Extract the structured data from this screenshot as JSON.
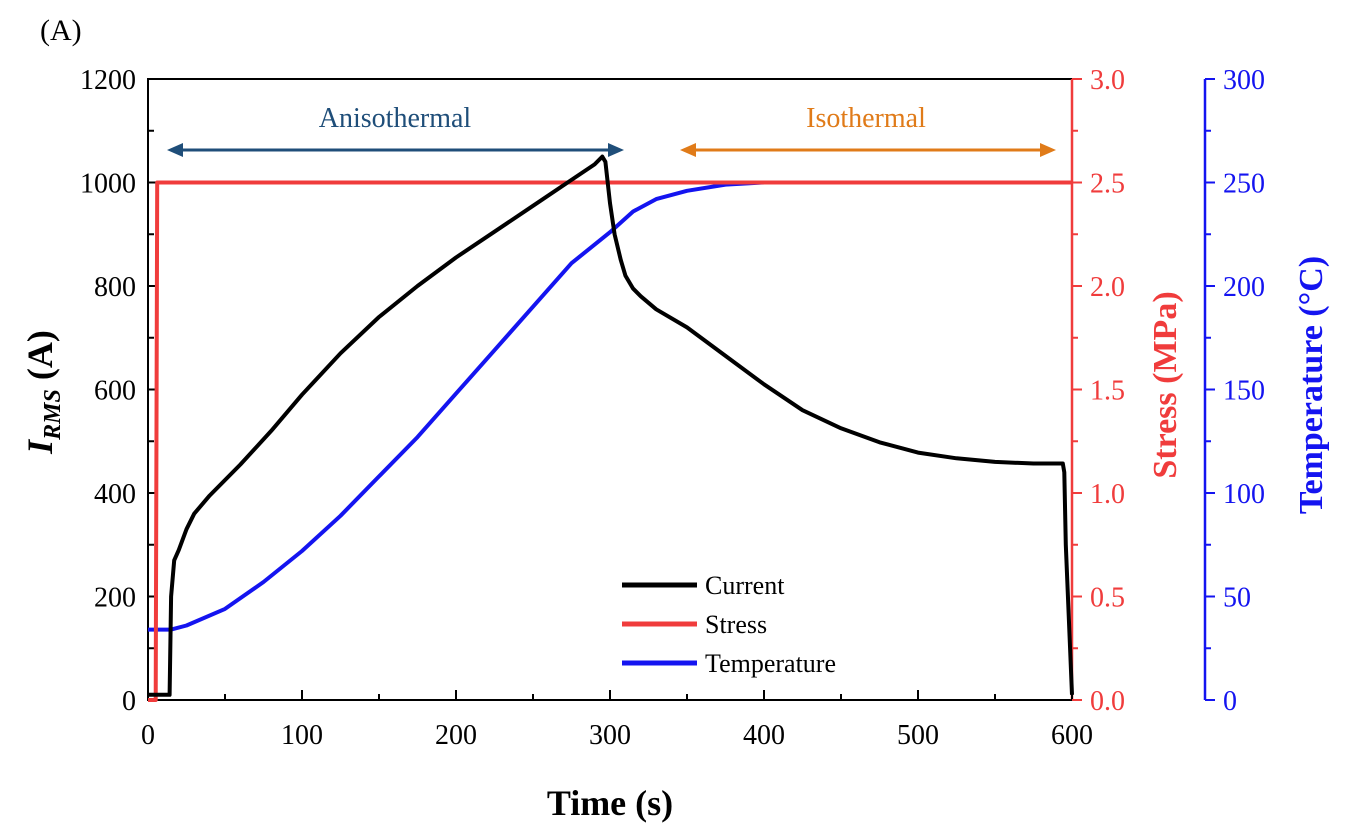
{
  "panel_label": "(A)",
  "annotations": {
    "anisothermal": "Anisothermal",
    "isothermal": "Isothermal"
  },
  "colors": {
    "current": "#000000",
    "stress": "#f03c3c",
    "temperature": "#1414f0",
    "anisothermal": "#1f4e79",
    "isothermal": "#e07b19"
  },
  "chart_data": {
    "type": "line",
    "xlabel": "Time (s)",
    "xlim": [
      0,
      600
    ],
    "xticks": [
      0,
      100,
      200,
      300,
      400,
      500,
      600
    ],
    "axes": {
      "left": {
        "label_main": "I",
        "label_sub": "RMS",
        "label_unit": " (A)",
        "ylim": [
          0,
          1200
        ],
        "ticks": [
          0,
          200,
          400,
          600,
          800,
          1000,
          1200
        ],
        "tick_labels": [
          "0",
          "200",
          "400",
          "600",
          "800",
          "1000",
          "1200"
        ]
      },
      "right1": {
        "label": "Stress (MPa)",
        "ylim": [
          0,
          3
        ],
        "ticks": [
          0,
          0.5,
          1,
          1.5,
          2,
          2.5,
          3
        ],
        "tick_labels": [
          "0.0",
          "0.5",
          "1.0",
          "1.5",
          "2.0",
          "2.5",
          "3.0"
        ]
      },
      "right2": {
        "label": "Temperature (°C)",
        "ylim": [
          0,
          300
        ],
        "ticks": [
          0,
          50,
          100,
          150,
          200,
          250,
          300
        ],
        "tick_labels": [
          "0",
          "50",
          "100",
          "150",
          "200",
          "250",
          "300"
        ]
      }
    },
    "legend_position": "bottom-center",
    "series": [
      {
        "name": "Current",
        "axis": "left",
        "x": [
          0,
          14,
          15,
          17,
          20,
          25,
          30,
          40,
          60,
          80,
          100,
          125,
          150,
          175,
          200,
          225,
          250,
          275,
          290,
          295,
          297,
          300,
          303,
          307,
          310,
          315,
          320,
          330,
          350,
          375,
          400,
          425,
          450,
          475,
          500,
          525,
          550,
          575,
          594,
          595,
          596,
          600
        ],
        "y": [
          10,
          10,
          200,
          270,
          290,
          330,
          360,
          395,
          455,
          520,
          590,
          670,
          740,
          800,
          855,
          905,
          955,
          1005,
          1035,
          1050,
          1040,
          960,
          900,
          850,
          820,
          795,
          780,
          755,
          720,
          665,
          610,
          560,
          525,
          498,
          478,
          467,
          460,
          457,
          457,
          440,
          300,
          10
        ]
      },
      {
        "name": "Stress",
        "axis": "right1",
        "x": [
          0,
          5,
          6,
          600
        ],
        "y": [
          0,
          0,
          2.5,
          2.5
        ]
      },
      {
        "name": "Temperature",
        "axis": "right2",
        "x": [
          0,
          15,
          25,
          50,
          75,
          100,
          125,
          150,
          175,
          200,
          225,
          250,
          275,
          300,
          315,
          330,
          350,
          375,
          400,
          425,
          450,
          500,
          550,
          600
        ],
        "y": [
          34,
          34,
          36,
          44,
          57,
          72,
          89,
          108,
          127,
          148,
          169,
          190,
          211,
          226,
          236,
          242,
          246,
          249,
          250,
          250,
          250,
          250,
          250,
          250
        ]
      }
    ]
  }
}
